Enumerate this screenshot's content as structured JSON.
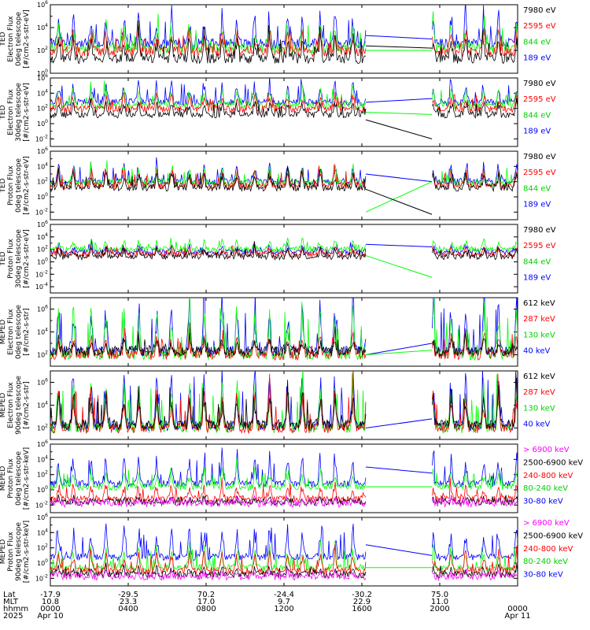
{
  "colors": {
    "black": "#000000",
    "blue": "#0000ff",
    "red": "#ff0000",
    "green": "#00ff00",
    "magenta": "#ff00ff"
  },
  "chart_data": [
    {
      "type": "line",
      "ylabel": [
        "TED",
        "Electron Flux",
        "0deg telescope",
        "[#/cm2-s-str-eV]"
      ],
      "yscale": "log",
      "ylim_exp": [
        0,
        6
      ],
      "yticks": [
        "10^0",
        "10^2",
        "10^4",
        "10^6"
      ],
      "series": [
        {
          "name": "7980 eV",
          "color": "#000000",
          "baseline": 1.3,
          "spike": 1.6
        },
        {
          "name": "2595 eV",
          "color": "#ff0000",
          "baseline": 1.9,
          "spike": 1.6
        },
        {
          "name": "844 eV",
          "color": "#00ff00",
          "baseline": 2.2,
          "spike": 1.8
        },
        {
          "name": "189 eV",
          "color": "#0000ff",
          "baseline": 2.6,
          "spike": 2.2
        }
      ],
      "gap_lines": [
        [
          3.3,
          3.0
        ],
        [
          2.0,
          2.0
        ],
        [
          2.4,
          2.2
        ]
      ]
    },
    {
      "type": "line",
      "ylabel": [
        "TED",
        "Electron Flux",
        "30deg telescope",
        "[#/cm2-s-str-eV]"
      ],
      "yscale": "log",
      "ylim_exp": [
        -3,
        6
      ],
      "yticks": [
        "10^-2",
        "10^0",
        "10^2",
        "10^4",
        "10^6"
      ],
      "series": [
        {
          "name": "7980 eV",
          "color": "#000000",
          "baseline": 1.2,
          "spike": 1.5
        },
        {
          "name": "2595 eV",
          "color": "#ff0000",
          "baseline": 1.9,
          "spike": 1.6
        },
        {
          "name": "844 eV",
          "color": "#00ff00",
          "baseline": 2.4,
          "spike": 2.0
        },
        {
          "name": "189 eV",
          "color": "#0000ff",
          "baseline": 2.8,
          "spike": 2.4
        }
      ],
      "gap_lines": [
        [
          2.8,
          3.3
        ],
        [
          1.5,
          1.2
        ],
        [
          0.5,
          -2.0
        ]
      ]
    },
    {
      "type": "line",
      "ylabel": [
        "TED",
        "Proton Flux",
        "0deg telescope",
        "[#/cm2-s-str-eV]"
      ],
      "yscale": "log",
      "ylim_exp": [
        -3,
        6
      ],
      "yticks": [
        "10^-2",
        "10^0",
        "10^2",
        "10^4",
        "10^6"
      ],
      "series": [
        {
          "name": "7980 eV",
          "color": "#000000",
          "baseline": 1.2,
          "spike": 1.8
        },
        {
          "name": "2595 eV",
          "color": "#ff0000",
          "baseline": 1.5,
          "spike": 1.8
        },
        {
          "name": "844 eV",
          "color": "#00ff00",
          "baseline": 1.8,
          "spike": 1.8
        },
        {
          "name": "189 eV",
          "color": "#0000ff",
          "baseline": 2.0,
          "spike": 2.0
        }
      ],
      "gap_lines": [
        [
          3.0,
          2.0
        ],
        [
          -2.0,
          2.0
        ],
        [
          1.0,
          -2.3
        ]
      ]
    },
    {
      "type": "line",
      "ylabel": [
        "TED",
        "Proton Flux",
        "30deg telescope",
        "[#/cm2-s-str-eV]"
      ],
      "yscale": "log",
      "ylim_exp": [
        -5,
        6
      ],
      "yticks": [
        "10^-4",
        "10^-2",
        "10^0",
        "10^2",
        "10^4",
        "10^6"
      ],
      "series": [
        {
          "name": "7980 eV",
          "color": "#000000",
          "baseline": 0.8,
          "spike": 1.2
        },
        {
          "name": "2595 eV",
          "color": "#ff0000",
          "baseline": 1.2,
          "spike": 1.0
        },
        {
          "name": "844 eV",
          "color": "#00ff00",
          "baseline": 2.0,
          "spike": 1.2
        },
        {
          "name": "189 eV",
          "color": "#0000ff",
          "baseline": 1.6,
          "spike": 1.0
        }
      ],
      "gap_lines": [
        [
          2.8,
          2.4
        ],
        [
          1.0,
          -2.5
        ]
      ]
    },
    {
      "type": "line",
      "ylabel": [
        "MEPED",
        "Electron Flux",
        "0deg telescope",
        "[#/cm2-s-str]"
      ],
      "yscale": "log",
      "ylim_exp": [
        1,
        7
      ],
      "yticks": [
        "10^2",
        "10^4",
        "10^6"
      ],
      "series": [
        {
          "name": "612 keV",
          "color": "#000000",
          "baseline": 2.3,
          "spike": 1.0
        },
        {
          "name": "287 keV",
          "color": "#ff0000",
          "baseline": 2.0,
          "spike": 1.6
        },
        {
          "name": "130 keV",
          "color": "#00ff00",
          "baseline": 2.0,
          "spike": 3.5
        },
        {
          "name": "40 keV",
          "color": "#0000ff",
          "baseline": 2.3,
          "spike": 4.0
        }
      ],
      "gap_lines": [
        [
          2.0,
          3.0
        ],
        [
          2.0,
          2.4
        ]
      ]
    },
    {
      "type": "line",
      "ylabel": [
        "MEPED",
        "Electron Flux",
        "90deg telescope",
        "[#/cm2-s-str]"
      ],
      "yscale": "log",
      "ylim_exp": [
        1,
        7
      ],
      "yticks": [
        "10^2",
        "10^4",
        "10^6"
      ],
      "series": [
        {
          "name": "612 keV",
          "color": "#000000",
          "baseline": 2.3,
          "spike": 2.5
        },
        {
          "name": "287 keV",
          "color": "#ff0000",
          "baseline": 2.0,
          "spike": 2.8
        },
        {
          "name": "130 keV",
          "color": "#00ff00",
          "baseline": 2.0,
          "spike": 3.5
        },
        {
          "name": "40 keV",
          "color": "#0000ff",
          "baseline": 2.2,
          "spike": 4.0
        }
      ],
      "gap_lines": [
        [
          2.0,
          2.8
        ]
      ]
    },
    {
      "type": "line",
      "ylabel": [
        "MEPED",
        "Proton Flux",
        "0deg telescope",
        "[#/cm2-s-str-keV]"
      ],
      "yscale": "log",
      "ylim_exp": [
        -3,
        6
      ],
      "yticks": [
        "10^-2",
        "10^0",
        "10^2",
        "10^4",
        "10^6"
      ],
      "series": [
        {
          "name": "> 6900 keV",
          "color": "#ff00ff",
          "baseline": -1.8,
          "spike": 0.6
        },
        {
          "name": "2500-6900 keV",
          "color": "#000000",
          "baseline": -1.6,
          "spike": 0.5
        },
        {
          "name": "240-800 keV",
          "color": "#ff0000",
          "baseline": -1.2,
          "spike": 1.8
        },
        {
          "name": "80-240 keV",
          "color": "#00ff00",
          "baseline": 0.4,
          "spike": 2.0
        },
        {
          "name": "30-80 keV",
          "color": "#0000ff",
          "baseline": 0.8,
          "spike": 3.2
        }
      ],
      "gap_lines": [
        [
          3.0,
          2.2
        ],
        [
          0.4,
          0.4
        ]
      ]
    },
    {
      "type": "line",
      "ylabel": [
        "MEPED",
        "Proton Flux",
        "90deg telescope",
        "[#/cm2-s-str-keV]"
      ],
      "yscale": "log",
      "ylim_exp": [
        -3,
        6
      ],
      "yticks": [
        "10^-2",
        "10^0",
        "10^2",
        "10^4",
        "10^6"
      ],
      "series": [
        {
          "name": "> 6900 keV",
          "color": "#ff00ff",
          "baseline": -1.8,
          "spike": 0.6
        },
        {
          "name": "2500-6900 keV",
          "color": "#000000",
          "baseline": -1.5,
          "spike": 0.8
        },
        {
          "name": "240-800 keV",
          "color": "#ff0000",
          "baseline": -1.0,
          "spike": 2.2
        },
        {
          "name": "80-240 keV",
          "color": "#00ff00",
          "baseline": -0.6,
          "spike": 2.4
        },
        {
          "name": "30-80 keV",
          "color": "#0000ff",
          "baseline": 0.8,
          "spike": 3.2
        }
      ],
      "gap_lines": [
        [
          2.4,
          1.0
        ],
        [
          -0.6,
          -0.6
        ]
      ]
    }
  ],
  "x_axis": {
    "row_labels": [
      "Lat",
      "MLT",
      "hhmm",
      "2025"
    ],
    "ticks": [
      {
        "time_hours": 0,
        "lat": "-17.9",
        "mlt": "10.8",
        "hhmm": "0000",
        "date": "Apr 10"
      },
      {
        "time_hours": 4,
        "lat": "-29.5",
        "mlt": "23.3",
        "hhmm": "0400",
        "date": ""
      },
      {
        "time_hours": 8,
        "lat": "70.2",
        "mlt": "17.0",
        "hhmm": "0800",
        "date": ""
      },
      {
        "time_hours": 12,
        "lat": "-24.4",
        "mlt": "9.7",
        "hhmm": "1200",
        "date": ""
      },
      {
        "time_hours": 16,
        "lat": "-30.2",
        "mlt": "22.9",
        "hhmm": "1600",
        "date": ""
      },
      {
        "time_hours": 20,
        "lat": "75.0",
        "mlt": "11.0",
        "hhmm": "2000",
        "date": ""
      },
      {
        "time_hours": 24,
        "lat": "",
        "mlt": "",
        "hhmm": "0000",
        "date": "Apr 11"
      }
    ],
    "data_gap_hours": [
      16.2,
      19.6
    ],
    "orbit_period_hours": 1.68
  }
}
